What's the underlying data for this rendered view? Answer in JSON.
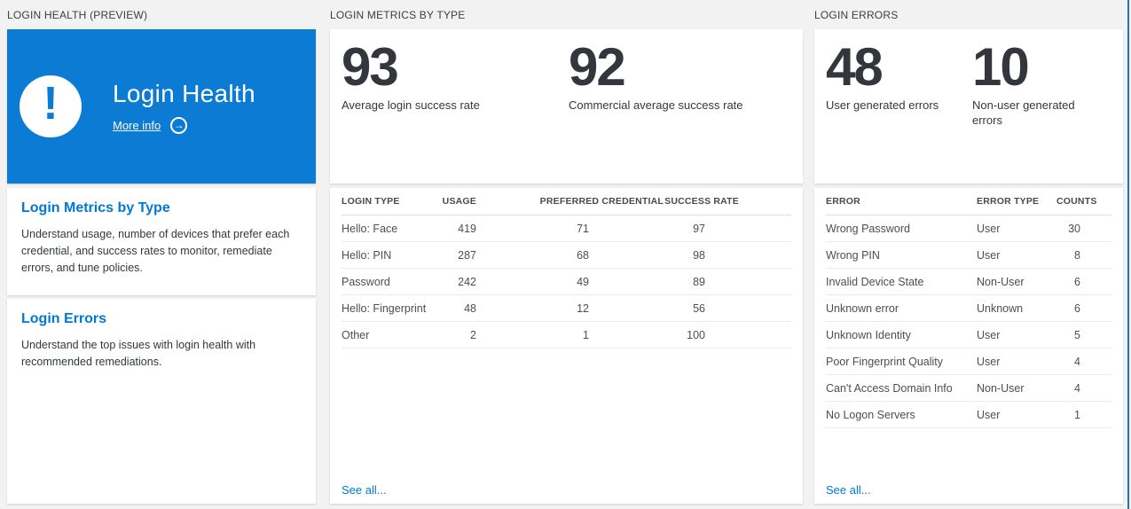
{
  "page": {
    "background": "#f2f2f2",
    "tile_blue": "#0c7bd3",
    "accent_blue": "#0078d4",
    "right_border_blue": "#2572b5"
  },
  "section_headers": {
    "health": "LOGIN HEALTH (PREVIEW)",
    "metrics": "LOGIN METRICS BY TYPE",
    "errors": "LOGIN ERRORS"
  },
  "hero": {
    "title": "Login Health",
    "more_info_label": "More info",
    "icon": "exclamation-icon",
    "arrow_icon": "→",
    "exclamation_glyph": "!"
  },
  "nav_cards": [
    {
      "title": "Login Metrics by Type",
      "description": "Understand usage, number of devices that prefer each credential, and success rates to monitor, remediate errors, and tune policies."
    },
    {
      "title": "Login Errors",
      "description": "Understand the top issues with login health with recommended remediations."
    }
  ],
  "metrics": {
    "stats": [
      {
        "value": "93",
        "label": "Average login success rate"
      },
      {
        "value": "92",
        "label": "Commercial average success rate"
      }
    ],
    "table": {
      "headers": [
        "LOGIN TYPE",
        "USAGE",
        "PREFERRED CREDENTIAL",
        "SUCCESS RATE"
      ],
      "rows": [
        [
          "Hello: Face",
          "419",
          "71",
          "97"
        ],
        [
          "Hello: PIN",
          "287",
          "68",
          "98"
        ],
        [
          "Password",
          "242",
          "49",
          "89"
        ],
        [
          "Hello: Fingerprint",
          "48",
          "12",
          "56"
        ],
        [
          "Other",
          "2",
          "1",
          "100"
        ]
      ]
    },
    "see_all": "See all..."
  },
  "errors": {
    "stats": [
      {
        "value": "48",
        "label": "User generated errors"
      },
      {
        "value": "10",
        "label": "Non-user generated errors"
      }
    ],
    "table": {
      "headers": [
        "ERROR",
        "ERROR TYPE",
        "COUNTS"
      ],
      "rows": [
        [
          "Wrong Password",
          "User",
          "30"
        ],
        [
          "Wrong PIN",
          "User",
          "8"
        ],
        [
          "Invalid Device State",
          "Non-User",
          "6"
        ],
        [
          "Unknown error",
          "Unknown",
          "6"
        ],
        [
          "Unknown Identity",
          "User",
          "5"
        ],
        [
          "Poor Fingerprint Quality",
          "User",
          "4"
        ],
        [
          "Can't Access Domain Info",
          "Non-User",
          "4"
        ],
        [
          "No Logon Servers",
          "User",
          "1"
        ]
      ]
    },
    "see_all": "See all..."
  }
}
